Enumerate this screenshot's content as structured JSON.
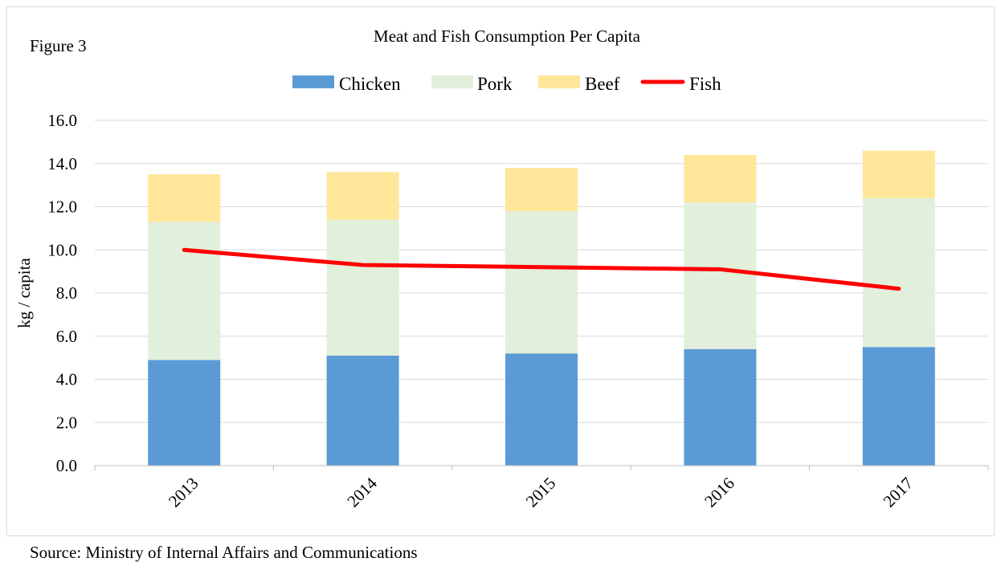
{
  "figure_label": "Figure 3",
  "source_note": "Source: Ministry of Internal Affairs and Communications",
  "chart_data": {
    "type": "bar",
    "stacked": true,
    "title": "Meat and Fish Consumption Per Capita",
    "xlabel": "",
    "ylabel": "kg / capita",
    "categories": [
      "2013",
      "2014",
      "2015",
      "2016",
      "2017"
    ],
    "ylim": [
      0,
      16
    ],
    "yticks": [
      "0.0",
      "2.0",
      "4.0",
      "6.0",
      "8.0",
      "10.0",
      "12.0",
      "14.0",
      "16.0"
    ],
    "grid": true,
    "legend_position": "top",
    "series": [
      {
        "name": "Chicken",
        "kind": "bar",
        "color": "#5b9bd5",
        "values": [
          4.9,
          5.1,
          5.2,
          5.4,
          5.5
        ]
      },
      {
        "name": "Pork",
        "kind": "bar",
        "color": "#e2efda",
        "values": [
          6.4,
          6.3,
          6.6,
          6.8,
          6.9
        ]
      },
      {
        "name": "Beef",
        "kind": "bar",
        "color": "#ffe699",
        "values": [
          2.2,
          2.2,
          2.0,
          2.2,
          2.2
        ]
      },
      {
        "name": "Fish",
        "kind": "line",
        "color": "#ff0000",
        "values": [
          10.0,
          9.3,
          9.2,
          9.1,
          8.2
        ]
      }
    ]
  }
}
